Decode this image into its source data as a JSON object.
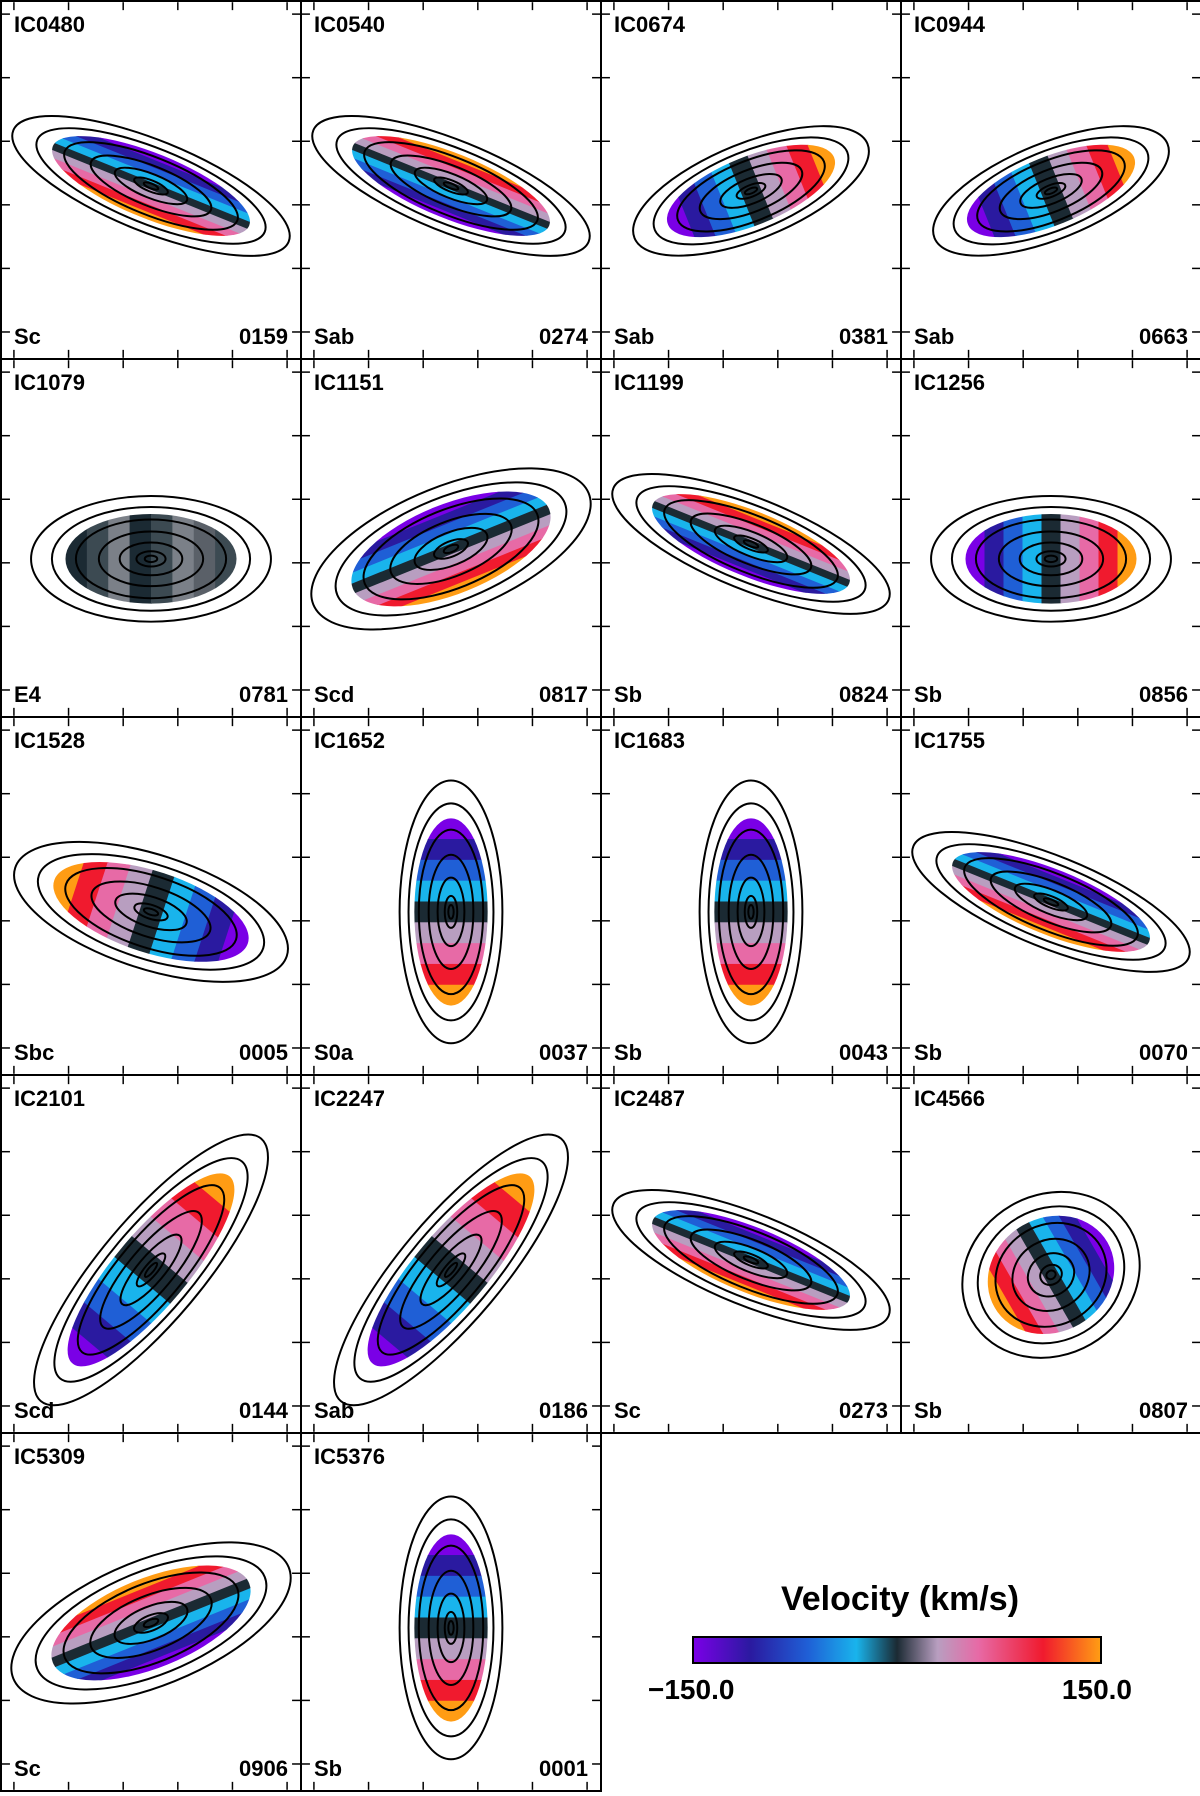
{
  "colorbar": {
    "title": "Velocity (km/s)",
    "min_label": "−150.0",
    "max_label": "150.0",
    "min": -150.0,
    "max": 150.0
  },
  "galaxies": [
    {
      "name": "IC0480",
      "type": "Sc",
      "number": "0159",
      "orientation": "steep-NE",
      "velocity_gradient": "redshift north, blueshift south"
    },
    {
      "name": "IC0540",
      "type": "Sab",
      "number": "0274",
      "orientation": "steep-NE",
      "velocity_gradient": "blueshift north, redshift south"
    },
    {
      "name": "IC0674",
      "type": "Sab",
      "number": "0381",
      "orientation": "shallow-NE",
      "velocity_gradient": "blueshift southwest, redshift northeast"
    },
    {
      "name": "IC0944",
      "type": "Sab",
      "number": "0663",
      "orientation": "shallow-NE",
      "velocity_gradient": "blueshift west, redshift east"
    },
    {
      "name": "IC1079",
      "type": "E4",
      "number": "0781",
      "orientation": "horizontal",
      "velocity_gradient": "low amplitude"
    },
    {
      "name": "IC1151",
      "type": "Scd",
      "number": "0817",
      "orientation": "steep-NW",
      "velocity_gradient": "redshift north, blueshift south"
    },
    {
      "name": "IC1199",
      "type": "Sb",
      "number": "0824",
      "orientation": "steep-NE",
      "velocity_gradient": "blueshift north, redshift south"
    },
    {
      "name": "IC1256",
      "type": "Sb",
      "number": "0856",
      "orientation": "horizontal",
      "velocity_gradient": "blueshift west, redshift east"
    },
    {
      "name": "IC1528",
      "type": "Sbc",
      "number": "0005",
      "orientation": "shallow-NW",
      "velocity_gradient": "redshift west, blueshift east"
    },
    {
      "name": "IC1652",
      "type": "S0a",
      "number": "0037",
      "orientation": "vertical",
      "velocity_gradient": "blueshift north, redshift south"
    },
    {
      "name": "IC1683",
      "type": "Sb",
      "number": "0043",
      "orientation": "vertical",
      "velocity_gradient": "blueshift north, redshift south"
    },
    {
      "name": "IC1755",
      "type": "Sb",
      "number": "0070",
      "orientation": "steep-NE",
      "velocity_gradient": "redshift north, blueshift south"
    },
    {
      "name": "IC2101",
      "type": "Scd",
      "number": "0144",
      "orientation": "diagonal-NE",
      "velocity_gradient": "blueshift north, redshift south"
    },
    {
      "name": "IC2247",
      "type": "Sab",
      "number": "0186",
      "orientation": "diagonal-NE",
      "velocity_gradient": "blueshift north, redshift south"
    },
    {
      "name": "IC2487",
      "type": "Sc",
      "number": "0273",
      "orientation": "steep-NE",
      "velocity_gradient": "redshift north, blueshift south"
    },
    {
      "name": "IC4566",
      "type": "Sb",
      "number": "0807",
      "orientation": "round",
      "velocity_gradient": "redshift north, blueshift south"
    },
    {
      "name": "IC5309",
      "type": "Sc",
      "number": "0906",
      "orientation": "steep-NW",
      "velocity_gradient": "blueshift north, redshift south"
    },
    {
      "name": "IC5376",
      "type": "Sb",
      "number": "0001",
      "orientation": "vertical",
      "velocity_gradient": "blueshift north, redshift south"
    }
  ],
  "colors": {
    "velocity_scale": [
      "#7a00e6",
      "#2a1aa0",
      "#1f5fd6",
      "#19b4ec",
      "#1b2a33",
      "#b89ec0",
      "#e76aa6",
      "#f01a2e",
      "#ff9c14"
    ]
  }
}
